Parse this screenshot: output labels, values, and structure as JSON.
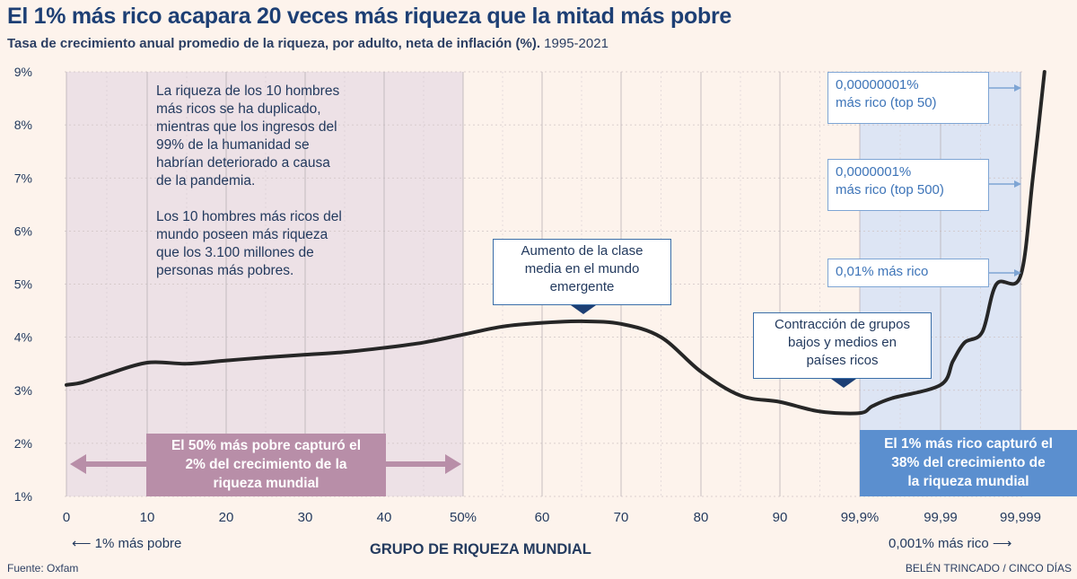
{
  "title": "El 1% más rico acapara 20 veces más riqueza que la mitad más pobre",
  "subtitle_bold": "Tasa de crecimiento anual promedio de la riqueza, por adulto, neta de inflación (%).",
  "subtitle_rest": " 1995-2021",
  "note_lines": [
    "La riqueza de los 10 hombres",
    "más ricos se ha duplicado,",
    "mientras que los ingresos del",
    "99% de la humanidad se",
    "habrían deteriorado a causa",
    "de la pandemia.",
    "",
    "Los 10 hombres más ricos del",
    "mundo poseen más riqueza",
    "que los 3.100 millones de",
    "personas más pobres."
  ],
  "annotations": {
    "middle_class": [
      "Aumento de la clase",
      "media en el mundo",
      "emergente"
    ],
    "contraction": [
      "Contracción de grupos",
      "bajos y medios en",
      "países ricos"
    ],
    "top50": [
      "0,00000001%",
      "más rico (top 50)"
    ],
    "top500": [
      "0,0000001%",
      "más rico (top 500)"
    ],
    "top001": [
      "0,01% más rico"
    ]
  },
  "bottom_band_label": [
    "El 50% más pobre capturó el",
    "2% del crecimiento de la",
    "riqueza mundial"
  ],
  "top_band_label": [
    "El 1% más rico capturó el",
    "38% del crecimiento de",
    "la riqueza mundial"
  ],
  "xlabel": "GRUPO DE RIQUEZA MUNDIAL",
  "left_direction": "1% más pobre",
  "right_direction": "0,001% más rico",
  "source": "Fuente: Oxfam",
  "credit": "BELÉN TRINCADO / CINCO DÍAS",
  "colors": {
    "line": "#262626",
    "poor_band": "#ede1e6",
    "poor_label": "#b88ea8",
    "rich_band": "#dde5f4",
    "rich_label": "#5b8fcf",
    "arrow_box_border": "#7ea5d4",
    "title": "#1d3f74"
  },
  "chart_data": {
    "type": "line",
    "title": "El 1% más rico acapara 20 veces más riqueza que la mitad más pobre",
    "xlabel": "GRUPO DE RIQUEZA MUNDIAL",
    "ylabel": "",
    "x_tick_labels": [
      "0",
      "10",
      "20",
      "30",
      "40",
      "50%",
      "60",
      "70",
      "80",
      "90",
      "99,9%",
      "99,99",
      "99,999"
    ],
    "y_tick_labels": [
      "1%",
      "2%",
      "3%",
      "4%",
      "5%",
      "6%",
      "7%",
      "8%",
      "9%"
    ],
    "ylim": [
      1,
      9
    ],
    "grid": true,
    "series": [
      {
        "x": [
          "0",
          "2",
          "5",
          "10",
          "15",
          "20",
          "25",
          "30",
          "35",
          "40",
          "45",
          "50",
          "55",
          "60",
          "65",
          "70",
          "75",
          "80",
          "85",
          "90",
          "95",
          "99,9%",
          "99,93",
          "99,96",
          "99,99",
          "99,993",
          "99,995",
          "99,997",
          "99,998",
          "99,999",
          "99,9993",
          "99,9995"
        ],
        "values": [
          3.1,
          3.15,
          3.3,
          3.52,
          3.5,
          3.56,
          3.62,
          3.67,
          3.72,
          3.8,
          3.9,
          4.05,
          4.2,
          4.27,
          4.3,
          4.25,
          4.0,
          3.35,
          2.9,
          2.78,
          2.6,
          2.57,
          2.7,
          2.85,
          3.1,
          3.55,
          3.9,
          4.1,
          5.0,
          5.15,
          7.0,
          9.0
        ]
      }
    ],
    "bands": [
      {
        "from": "0",
        "to": "50%",
        "label": "El 50% más pobre capturó el 2% del crecimiento de la riqueza mundial"
      },
      {
        "from": "99,9%",
        "to": "99,999",
        "label": "El 1% más rico capturó el 38% del crecimiento de la riqueza mundial"
      }
    ]
  }
}
